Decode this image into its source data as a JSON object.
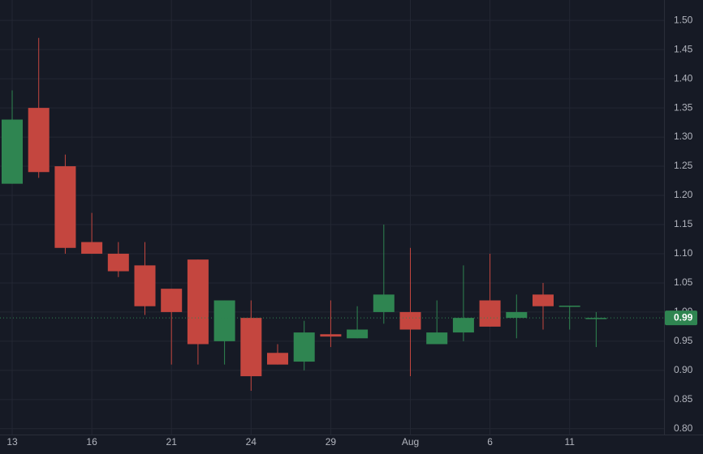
{
  "chart_data": {
    "type": "candlestick",
    "categories": [
      "13",
      null,
      null,
      "16",
      null,
      null,
      "21",
      null,
      null,
      "24",
      null,
      null,
      "29",
      null,
      null,
      "Aug",
      null,
      null,
      "6",
      null,
      null,
      "11",
      null
    ],
    "open": [
      1.22,
      1.35,
      1.25,
      1.12,
      1.1,
      1.08,
      1.04,
      1.09,
      0.95,
      0.99,
      0.93,
      0.915,
      0.962,
      0.955,
      1.0,
      1.0,
      0.945,
      0.965,
      1.02,
      0.99,
      1.03,
      1.01,
      0.988
    ],
    "high": [
      1.38,
      1.47,
      1.27,
      1.17,
      1.12,
      1.12,
      1.04,
      1.09,
      1.02,
      1.02,
      0.945,
      0.985,
      1.02,
      1.01,
      1.15,
      1.11,
      1.02,
      1.08,
      1.1,
      1.03,
      1.05,
      1.01,
      1.0
    ],
    "low": [
      1.22,
      1.23,
      1.1,
      1.1,
      1.06,
      0.995,
      0.91,
      0.91,
      0.91,
      0.865,
      0.91,
      0.9,
      0.94,
      0.955,
      0.98,
      0.89,
      0.945,
      0.95,
      0.975,
      0.955,
      0.97,
      0.97,
      0.94
    ],
    "close": [
      1.33,
      1.24,
      1.11,
      1.1,
      1.07,
      1.01,
      1.0,
      0.945,
      1.02,
      0.89,
      0.91,
      0.965,
      0.958,
      0.97,
      1.03,
      0.97,
      0.965,
      0.99,
      0.975,
      1.0,
      1.01,
      1.011,
      0.99
    ],
    "up_color": "#2f8551",
    "down_color": "#c4463f",
    "ylim": [
      0.79,
      1.535
    ],
    "yticks": [
      {
        "value": 0.8,
        "label": "0.80"
      },
      {
        "value": 0.85,
        "label": "0.85"
      },
      {
        "value": 0.9,
        "label": "0.90"
      },
      {
        "value": 0.95,
        "label": "0.95"
      },
      {
        "value": 1.0,
        "label": "1.00"
      },
      {
        "value": 1.05,
        "label": "1.05"
      },
      {
        "value": 1.1,
        "label": "1.10"
      },
      {
        "value": 1.15,
        "label": "1.15"
      },
      {
        "value": 1.2,
        "label": "1.20"
      },
      {
        "value": 1.25,
        "label": "1.25"
      },
      {
        "value": 1.3,
        "label": "1.30"
      },
      {
        "value": 1.35,
        "label": "1.35"
      },
      {
        "value": 1.4,
        "label": "1.40"
      },
      {
        "value": 1.45,
        "label": "1.45"
      },
      {
        "value": 1.5,
        "label": "1.50"
      }
    ],
    "last_price": {
      "value": 0.99,
      "label": "0.99"
    },
    "grid": true
  }
}
